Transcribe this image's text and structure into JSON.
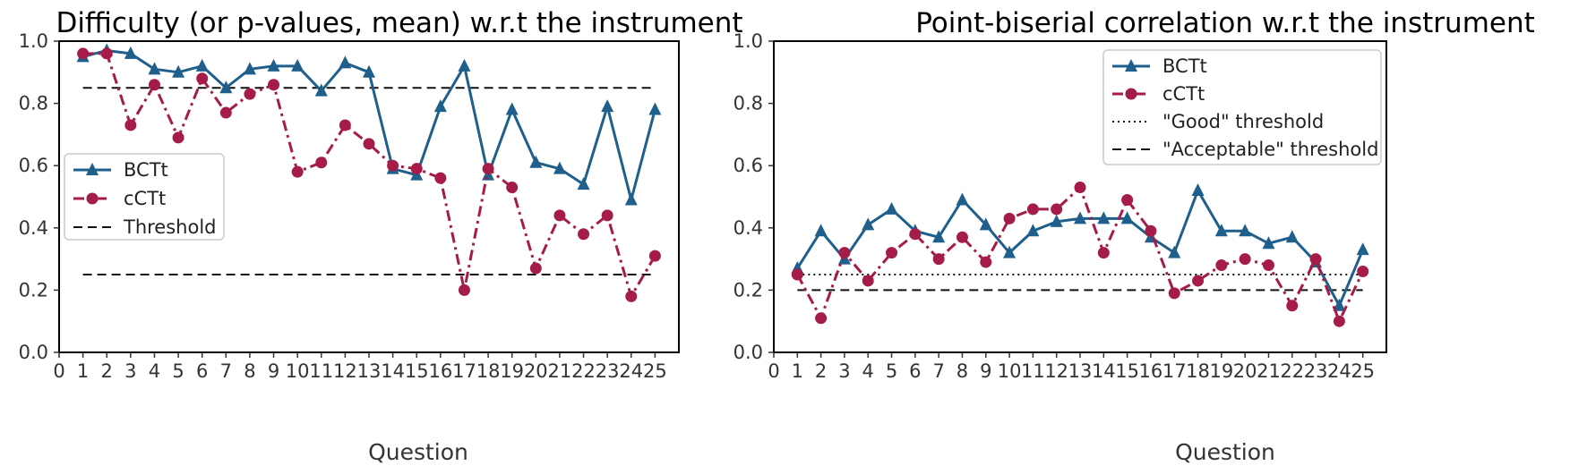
{
  "chart_data": [
    {
      "type": "line",
      "title": "Difficulty (or p-values, mean) w.r.t the instrument",
      "xlabel": "Question",
      "ylabel": "",
      "xlim": [
        0,
        26
      ],
      "ylim": [
        0,
        1
      ],
      "x_ticks": [
        "0",
        "1",
        "2",
        "3",
        "4",
        "5",
        "6",
        "7",
        "8",
        "9",
        "10",
        "11",
        "12",
        "13",
        "14",
        "15",
        "16",
        "17",
        "18",
        "19",
        "20",
        "21",
        "22",
        "23",
        "24",
        "25"
      ],
      "y_ticks": [
        "0.0",
        "0.2",
        "0.4",
        "0.6",
        "0.8",
        "1.0"
      ],
      "x": [
        1,
        2,
        3,
        4,
        5,
        6,
        7,
        8,
        9,
        10,
        11,
        12,
        13,
        14,
        15,
        16,
        17,
        18,
        19,
        20,
        21,
        22,
        23,
        24,
        25
      ],
      "series": [
        {
          "name": "BCTt",
          "color": "#1f5f8b",
          "style": "solid",
          "marker": "triangle",
          "values": [
            0.95,
            0.97,
            0.96,
            0.91,
            0.9,
            0.92,
            0.85,
            0.91,
            0.92,
            0.92,
            0.84,
            0.93,
            0.9,
            0.59,
            0.57,
            0.79,
            0.92,
            0.57,
            0.78,
            0.61,
            0.59,
            0.54,
            0.79,
            0.49,
            0.78
          ]
        },
        {
          "name": "cCTt",
          "color": "#a51c48",
          "style": "dashdot",
          "marker": "circle",
          "values": [
            0.96,
            0.96,
            0.73,
            0.86,
            0.69,
            0.88,
            0.77,
            0.83,
            0.86,
            0.58,
            0.61,
            0.73,
            0.67,
            0.6,
            0.59,
            0.56,
            0.2,
            0.59,
            0.53,
            0.27,
            0.44,
            0.38,
            0.44,
            0.18,
            0.31
          ]
        }
      ],
      "reference_lines": [
        {
          "name": "Threshold",
          "style": "dashed",
          "color": "#111111",
          "y": 0.85,
          "x_range": [
            1,
            25
          ]
        },
        {
          "name": "",
          "style": "dashed",
          "color": "#111111",
          "y": 0.25,
          "x_range": [
            1,
            25
          ]
        }
      ],
      "legend": {
        "position": "center-left",
        "entries": [
          "BCTt",
          "cCTt",
          "Threshold"
        ]
      },
      "grid": false
    },
    {
      "type": "line",
      "title": "Point-biserial correlation w.r.t the instrument",
      "xlabel": "Question",
      "ylabel": "",
      "xlim": [
        0,
        26
      ],
      "ylim": [
        0,
        1
      ],
      "x_ticks": [
        "0",
        "1",
        "2",
        "3",
        "4",
        "5",
        "6",
        "7",
        "8",
        "9",
        "10",
        "11",
        "12",
        "13",
        "14",
        "15",
        "16",
        "17",
        "18",
        "19",
        "20",
        "21",
        "22",
        "23",
        "24",
        "25"
      ],
      "y_ticks": [
        "0.0",
        "0.2",
        "0.4",
        "0.6",
        "0.8",
        "1.0"
      ],
      "x": [
        1,
        2,
        3,
        4,
        5,
        6,
        7,
        8,
        9,
        10,
        11,
        12,
        13,
        14,
        15,
        16,
        17,
        18,
        19,
        20,
        21,
        22,
        23,
        24,
        25
      ],
      "series": [
        {
          "name": "BCTt",
          "color": "#1f5f8b",
          "style": "solid",
          "marker": "triangle",
          "values": [
            0.27,
            0.39,
            0.3,
            0.41,
            0.46,
            0.39,
            0.37,
            0.49,
            0.41,
            0.32,
            0.39,
            0.42,
            0.43,
            0.43,
            0.43,
            0.37,
            0.32,
            0.52,
            0.39,
            0.39,
            0.35,
            0.37,
            0.29,
            0.15,
            0.33
          ]
        },
        {
          "name": "cCTt",
          "color": "#a51c48",
          "style": "dashdot",
          "marker": "circle",
          "values": [
            0.25,
            0.11,
            0.32,
            0.23,
            0.32,
            0.38,
            0.3,
            0.37,
            0.29,
            0.43,
            0.46,
            0.46,
            0.53,
            0.32,
            0.49,
            0.39,
            0.19,
            0.23,
            0.28,
            0.3,
            0.28,
            0.15,
            0.3,
            0.1,
            0.26
          ]
        }
      ],
      "reference_lines": [
        {
          "name": "\"Good\" threshold",
          "style": "dotted",
          "color": "#111111",
          "y": 0.25,
          "x_range": [
            1,
            25
          ]
        },
        {
          "name": "\"Acceptable\" threshold",
          "style": "dashed",
          "color": "#111111",
          "y": 0.2,
          "x_range": [
            1,
            25
          ]
        }
      ],
      "legend": {
        "position": "top-right",
        "entries": [
          "BCTt",
          "cCTt",
          "\"Good\" threshold",
          "\"Acceptable\" threshold"
        ]
      },
      "grid": false
    }
  ]
}
